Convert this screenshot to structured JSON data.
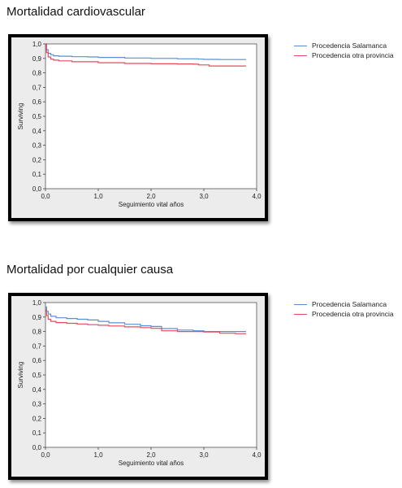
{
  "panels": [
    {
      "id": "cv",
      "title": "Mortalidad cardiovascular",
      "chart_data": {
        "type": "line",
        "title": "Mortalidad cardiovascular",
        "xlabel": "Seguimiento vital años",
        "ylabel": "Surviving",
        "xlim": [
          0,
          4
        ],
        "ylim": [
          0,
          1
        ],
        "xticks": [
          "0,0",
          "1,0",
          "2,0",
          "3,0",
          "4,0"
        ],
        "yticks": [
          "0,0",
          "0,1",
          "0,2",
          "0,3",
          "0,4",
          "0,5",
          "0,6",
          "0,7",
          "0,8",
          "0,9",
          "1,0"
        ],
        "grid": false,
        "legend": "right",
        "series": [
          {
            "name": "Procedencia Salamanca",
            "color": "#5b8fd4",
            "x": [
              0,
              0.02,
              0.05,
              0.1,
              0.15,
              0.25,
              0.5,
              0.8,
              1.0,
              1.5,
              2.0,
              2.5,
              2.9,
              3.0,
              3.3,
              3.8
            ],
            "y": [
              1.0,
              0.96,
              0.935,
              0.925,
              0.918,
              0.915,
              0.912,
              0.91,
              0.907,
              0.903,
              0.9,
              0.897,
              0.895,
              0.893,
              0.892,
              0.892
            ]
          },
          {
            "name": "Procedencia otra provincia",
            "color": "#e84a5f",
            "x": [
              0,
              0.02,
              0.05,
              0.1,
              0.15,
              0.25,
              0.5,
              1.0,
              1.5,
              2.0,
              2.5,
              2.8,
              2.9,
              3.1,
              3.5,
              3.8
            ],
            "y": [
              1.0,
              0.94,
              0.91,
              0.895,
              0.888,
              0.883,
              0.877,
              0.87,
              0.865,
              0.863,
              0.862,
              0.86,
              0.855,
              0.848,
              0.848,
              0.848
            ]
          }
        ]
      }
    },
    {
      "id": "all",
      "title": "Mortalidad por cualquier causa",
      "chart_data": {
        "type": "line",
        "title": "Mortalidad por cualquier causa",
        "xlabel": "Seguimiento vital años",
        "ylabel": "Surviving",
        "xlim": [
          0,
          4
        ],
        "ylim": [
          0,
          1
        ],
        "xticks": [
          "0,0",
          "1,0",
          "2,0",
          "3,0",
          "4,0"
        ],
        "yticks": [
          "0,0",
          "0,1",
          "0,2",
          "0,3",
          "0,4",
          "0,5",
          "0,6",
          "0,7",
          "0,8",
          "0,9",
          "1,0"
        ],
        "grid": false,
        "legend": "right",
        "series": [
          {
            "name": "Procedencia Salamanca",
            "color": "#5b8fd4",
            "x": [
              0,
              0.02,
              0.05,
              0.1,
              0.2,
              0.4,
              0.6,
              0.8,
              1.0,
              1.2,
              1.5,
              1.8,
              2.0,
              2.2,
              2.5,
              2.8,
              3.0,
              3.3,
              3.6,
              3.8
            ],
            "y": [
              0.97,
              0.94,
              0.92,
              0.905,
              0.895,
              0.89,
              0.885,
              0.88,
              0.87,
              0.86,
              0.85,
              0.84,
              0.835,
              0.82,
              0.81,
              0.805,
              0.8,
              0.8,
              0.8,
              0.8
            ]
          },
          {
            "name": "Procedencia otra provincia",
            "color": "#e84a5f",
            "x": [
              0,
              0.02,
              0.05,
              0.1,
              0.2,
              0.4,
              0.6,
              0.8,
              1.0,
              1.2,
              1.5,
              1.8,
              2.0,
              2.2,
              2.5,
              2.8,
              3.0,
              3.3,
              3.6,
              3.8
            ],
            "y": [
              0.95,
              0.91,
              0.885,
              0.87,
              0.862,
              0.857,
              0.852,
              0.847,
              0.843,
              0.838,
              0.832,
              0.827,
              0.822,
              0.805,
              0.8,
              0.8,
              0.797,
              0.788,
              0.785,
              0.785
            ]
          }
        ]
      }
    }
  ]
}
